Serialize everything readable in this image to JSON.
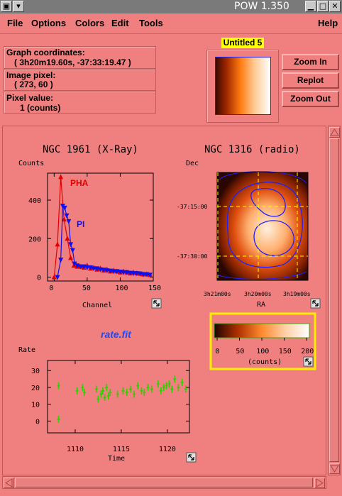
{
  "window": {
    "title": "POW 1.350"
  },
  "menu": [
    "File",
    "Options",
    "Colors",
    "Edit",
    "Tools",
    "Help"
  ],
  "info": {
    "graph_coords_label": "Graph coordinates:",
    "graph_coords_value": "( 3h20m19.60s, -37:33:19.47 )",
    "image_pixel_label": "Image pixel:",
    "image_pixel_value": "( 273, 60 )",
    "pixel_value_label": "Pixel value:",
    "pixel_value_value": "1 (counts)"
  },
  "preview": {
    "title": "Untitled 5"
  },
  "buttons": {
    "zoom_in": "Zoom In",
    "replot": "Replot",
    "zoom_out": "Zoom Out"
  },
  "plots": {
    "xray": {
      "title": "NGC 1961 (X-Ray)",
      "ylabel": "Counts",
      "xlabel": "Channel",
      "series": [
        "PHA",
        "PI"
      ]
    },
    "radio": {
      "title": "NGC 1316 (radio)",
      "ylabel": "Dec",
      "xlabel": "RA",
      "yticks": [
        "-37:15:00",
        "-37:30:00"
      ],
      "xticks": [
        "3h21m00s",
        "3h20m00s",
        "3h19m00s"
      ]
    },
    "colorbar": {
      "label": "(counts)",
      "ticks": [
        "0",
        "50",
        "100",
        "150",
        "200"
      ]
    },
    "rate": {
      "title": "rate.fit",
      "ylabel": "Rate",
      "xlabel": "Time"
    }
  },
  "chart_data": [
    {
      "type": "line",
      "title": "NGC 1961 (X-Ray)",
      "xlabel": "Channel",
      "ylabel": "Counts",
      "xlim": [
        -10,
        150
      ],
      "ylim": [
        -20,
        540
      ],
      "xticks": [
        0,
        50,
        100,
        150
      ],
      "yticks": [
        0,
        200,
        400
      ],
      "series": [
        {
          "name": "PHA",
          "color": "#e00000",
          "x": [
            0,
            5,
            10,
            15,
            20,
            25,
            30,
            35,
            40,
            45,
            50,
            55,
            60,
            65,
            70,
            75,
            80,
            85,
            90,
            95,
            100,
            105,
            110,
            115,
            120,
            125,
            130,
            135,
            140,
            145
          ],
          "y": [
            0,
            170,
            520,
            300,
            200,
            100,
            60,
            55,
            55,
            50,
            60,
            45,
            50,
            40,
            45,
            35,
            40,
            30,
            35,
            30,
            25,
            30,
            25,
            20,
            25,
            20,
            18,
            15,
            15,
            12
          ]
        },
        {
          "name": "PI",
          "color": "#1010ee",
          "x": [
            5,
            10,
            13,
            16,
            19,
            22,
            25,
            28,
            31,
            35,
            40,
            45,
            50,
            55,
            60,
            65,
            70,
            75,
            80,
            85,
            90,
            95,
            100,
            105,
            110,
            115,
            120,
            125,
            130,
            135,
            140,
            145
          ],
          "y": [
            0,
            90,
            370,
            360,
            320,
            290,
            170,
            140,
            70,
            60,
            55,
            55,
            50,
            50,
            45,
            45,
            40,
            38,
            35,
            33,
            30,
            30,
            28,
            25,
            25,
            22,
            20,
            20,
            18,
            15,
            15,
            12
          ]
        }
      ]
    },
    {
      "type": "scatter",
      "title": "rate.fit",
      "xlabel": "Time",
      "ylabel": "Rate",
      "xlim": [
        1107,
        1122.4
      ],
      "ylim": [
        -7,
        36
      ],
      "xticks": [
        1110,
        1115,
        1120
      ],
      "yticks": [
        0,
        10,
        20,
        30
      ],
      "series": [
        {
          "color": "#33cc00",
          "x": [
            1108.2,
            1108.2,
            1110.2,
            1110.8,
            1111.0,
            1112.3,
            1112.5,
            1112.8,
            1113.0,
            1113.2,
            1113.4,
            1113.6,
            1113.8,
            1114.6,
            1115.2,
            1115.6,
            1116.0,
            1116.4,
            1116.8,
            1117.2,
            1117.5,
            1117.9,
            1118.3,
            1119.0,
            1119.3,
            1119.6,
            1119.9,
            1120.2,
            1120.5,
            1120.8,
            1121.2,
            1121.6,
            1122.0
          ],
          "y": [
            1,
            21,
            18,
            20,
            17,
            19,
            13,
            16,
            18,
            14,
            20,
            15,
            17,
            16,
            18,
            17,
            19,
            16,
            21,
            18,
            17,
            20,
            19,
            22,
            18,
            20,
            21,
            22,
            19,
            25,
            20,
            23,
            19
          ]
        }
      ]
    }
  ]
}
